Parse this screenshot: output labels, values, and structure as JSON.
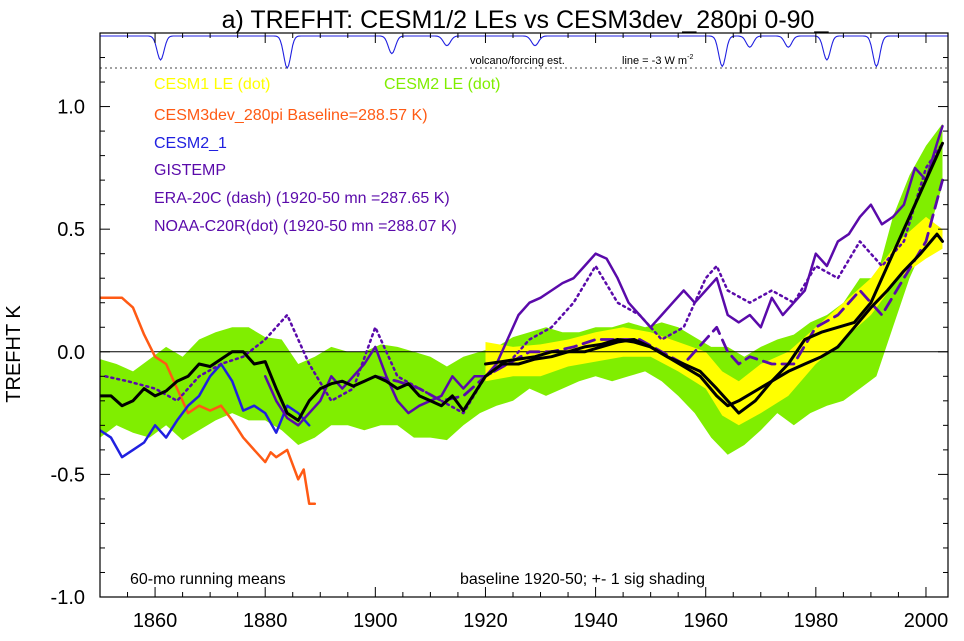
{
  "chart_data": {
    "type": "line",
    "title": "a) TREFHT: CESM1/2 LEs vs CESM3dev_280pi 0-90_",
    "xlabel": "",
    "ylabel": "TREFHT K",
    "xlim": [
      1850,
      2004
    ],
    "ylim": [
      -1.0,
      1.3
    ],
    "x_ticks": [
      1860,
      1880,
      1900,
      1920,
      1940,
      1960,
      1980,
      2000
    ],
    "y_ticks": [
      {
        "value": 1.0,
        "label": "1.0"
      },
      {
        "value": 0.5,
        "label": "0.5"
      },
      {
        "value": 0.0,
        "label": "0.0"
      },
      {
        "value": -0.5,
        "label": "-0.5"
      },
      {
        "value": -1.0,
        "label": "-1.0"
      }
    ],
    "grid": false,
    "zero_line": true,
    "legend_placement": "top-left",
    "legend": [
      {
        "label": "CESM1 LE (dot)",
        "color": "#ffff00"
      },
      {
        "label": "CESM2 LE (dot)",
        "color": "#80ee00"
      },
      {
        "label": "CESM3dev_280pi Baseline=288.57 K)",
        "color": "#ff5a14"
      },
      {
        "label": "CESM2_1",
        "color": "#2020e0"
      },
      {
        "label": "GISTEMP",
        "color": "#5a0aaa"
      },
      {
        "label": "ERA-20C (dash) (1920-50 mn =287.65 K)",
        "color": "#5a0aaa"
      },
      {
        "label": "NOAA-C20R(dot) (1920-50 mn =288.07 K)",
        "color": "#5a0aaa"
      }
    ],
    "annotations": {
      "volcano": "volcano/forcing est.",
      "line_scale": "line = -3 W m",
      "running_mean": "60-mo running means",
      "baseline": "baseline 1920-50; +- 1 sig shading"
    },
    "volcano_dips": [
      {
        "year": 1861,
        "depth": 0.75
      },
      {
        "year": 1884,
        "depth": 1.0
      },
      {
        "year": 1903,
        "depth": 0.55
      },
      {
        "year": 1913,
        "depth": 0.3
      },
      {
        "year": 1929,
        "depth": 0.3
      },
      {
        "year": 1963,
        "depth": 0.95
      },
      {
        "year": 1968,
        "depth": 0.35
      },
      {
        "year": 1975,
        "depth": 0.35
      },
      {
        "year": 1982,
        "depth": 0.75
      },
      {
        "year": 1991,
        "depth": 0.95
      }
    ],
    "series": [
      {
        "name": "CESM2 LE (dot)",
        "kind": "band",
        "color": "#80ee00",
        "x": [
          1850,
          1853,
          1856,
          1859,
          1862,
          1865,
          1868,
          1871,
          1874,
          1877,
          1880,
          1883,
          1886,
          1889,
          1892,
          1895,
          1898,
          1901,
          1904,
          1907,
          1910,
          1913,
          1916,
          1919,
          1922,
          1925,
          1928,
          1931,
          1934,
          1937,
          1940,
          1943,
          1946,
          1949,
          1952,
          1955,
          1958,
          1961,
          1964,
          1967,
          1970,
          1973,
          1976,
          1979,
          1982,
          1985,
          1988,
          1991,
          1994,
          1997,
          2000,
          2003
        ],
        "upper": [
          -0.03,
          -0.05,
          -0.08,
          -0.03,
          0.02,
          -0.02,
          0.05,
          0.08,
          0.1,
          0.1,
          0.06,
          0.05,
          -0.05,
          -0.02,
          0.02,
          0.0,
          0.0,
          0.03,
          0.02,
          0.0,
          -0.02,
          -0.06,
          -0.02,
          0.0,
          0.02,
          0.06,
          0.08,
          0.1,
          0.08,
          0.08,
          0.1,
          0.1,
          0.12,
          0.1,
          0.12,
          0.1,
          0.06,
          0.02,
          0.02,
          -0.02,
          0.02,
          0.05,
          0.07,
          0.12,
          0.15,
          0.2,
          0.3,
          0.3,
          0.55,
          0.72,
          0.84,
          0.93
        ],
        "lower": [
          -0.35,
          -0.3,
          -0.33,
          -0.35,
          -0.3,
          -0.36,
          -0.32,
          -0.28,
          -0.25,
          -0.28,
          -0.28,
          -0.32,
          -0.38,
          -0.35,
          -0.3,
          -0.3,
          -0.32,
          -0.3,
          -0.3,
          -0.35,
          -0.35,
          -0.36,
          -0.3,
          -0.25,
          -0.22,
          -0.2,
          -0.15,
          -0.18,
          -0.15,
          -0.12,
          -0.1,
          -0.12,
          -0.1,
          -0.08,
          -0.12,
          -0.18,
          -0.25,
          -0.35,
          -0.42,
          -0.38,
          -0.32,
          -0.25,
          -0.3,
          -0.25,
          -0.22,
          -0.2,
          -0.15,
          -0.1,
          0.1,
          0.3,
          0.45,
          0.68
        ]
      },
      {
        "name": "CESM1 LE (dot)",
        "kind": "band",
        "color": "#ffff00",
        "x": [
          1920,
          1925,
          1930,
          1935,
          1940,
          1945,
          1950,
          1955,
          1960,
          1963,
          1966,
          1970,
          1975,
          1980,
          1985,
          1990,
          1995,
          2000,
          2003
        ],
        "upper": [
          0.04,
          0.02,
          0.03,
          0.05,
          0.08,
          0.1,
          0.08,
          0.04,
          0.0,
          -0.08,
          -0.12,
          -0.05,
          0.0,
          0.1,
          0.2,
          0.3,
          0.45,
          0.55,
          0.5
        ],
        "lower": [
          -0.12,
          -0.1,
          -0.1,
          -0.06,
          -0.04,
          -0.02,
          -0.02,
          -0.08,
          -0.15,
          -0.26,
          -0.3,
          -0.25,
          -0.18,
          -0.05,
          0.05,
          0.15,
          0.3,
          0.38,
          0.42
        ]
      },
      {
        "name": "CESM3dev_280pi Baseline=288.57 K)",
        "kind": "line",
        "color": "#ff5a14",
        "width": 2.5,
        "x": [
          1850,
          1852,
          1854,
          1856,
          1858,
          1860,
          1862,
          1864,
          1866,
          1868,
          1870,
          1872,
          1874,
          1876,
          1878,
          1880,
          1881,
          1882,
          1884,
          1886,
          1887,
          1888,
          1889
        ],
        "y": [
          0.22,
          0.22,
          0.22,
          0.18,
          0.07,
          -0.02,
          -0.05,
          -0.15,
          -0.25,
          -0.22,
          -0.24,
          -0.22,
          -0.28,
          -0.35,
          -0.4,
          -0.45,
          -0.41,
          -0.43,
          -0.4,
          -0.52,
          -0.48,
          -0.62,
          -0.62
        ]
      },
      {
        "name": "CESM2_1",
        "kind": "line",
        "color": "#2020e0",
        "width": 2.5,
        "x": [
          1850,
          1852,
          1854,
          1856,
          1858,
          1860,
          1862,
          1864,
          1866,
          1868,
          1870,
          1872,
          1874,
          1876,
          1878,
          1880,
          1882,
          1884,
          1886,
          1888
        ],
        "y": [
          -0.32,
          -0.35,
          -0.43,
          -0.4,
          -0.37,
          -0.3,
          -0.35,
          -0.28,
          -0.22,
          -0.18,
          -0.1,
          -0.05,
          -0.12,
          -0.24,
          -0.22,
          -0.25,
          -0.33,
          -0.22,
          -0.25,
          -0.3
        ]
      },
      {
        "name": "NOAA-C20R(dot) (1920-50 mn =288.07 K)",
        "kind": "line",
        "color": "#5a0aaa",
        "width": 2.5,
        "dash": "2,4",
        "x": [
          1851,
          1855,
          1860,
          1864,
          1868,
          1872,
          1876,
          1880,
          1884,
          1888,
          1892,
          1896,
          1900,
          1904,
          1908,
          1912,
          1916,
          1920,
          1924,
          1928,
          1932,
          1936,
          1940,
          1944,
          1948,
          1952,
          1956,
          1960,
          1962,
          1964,
          1968,
          1972,
          1976,
          1980,
          1984,
          1988,
          1992,
          1996,
          2000,
          2003
        ],
        "y": [
          -0.1,
          -0.12,
          -0.15,
          -0.2,
          -0.1,
          -0.05,
          -0.02,
          0.05,
          0.15,
          -0.05,
          -0.2,
          -0.15,
          0.1,
          -0.1,
          -0.15,
          -0.2,
          -0.25,
          -0.1,
          -0.05,
          0.05,
          0.1,
          0.2,
          0.35,
          0.2,
          0.15,
          0.05,
          0.1,
          0.3,
          0.35,
          0.25,
          0.2,
          0.25,
          0.2,
          0.35,
          0.3,
          0.45,
          0.35,
          0.45,
          0.75,
          0.85
        ]
      },
      {
        "name": "ERA-20C (dash) (1920-50 mn =287.65 K)",
        "kind": "line",
        "color": "#5a0aaa",
        "width": 2.8,
        "dash": "12,7",
        "x": [
          1900,
          1904,
          1908,
          1912,
          1916,
          1920,
          1924,
          1928,
          1932,
          1936,
          1940,
          1944,
          1948,
          1952,
          1956,
          1960,
          1962,
          1964,
          1966,
          1968,
          1972,
          1976,
          1980,
          1984,
          1988,
          1992,
          1996,
          2000,
          2003
        ],
        "y": [
          -0.1,
          -0.12,
          -0.15,
          -0.2,
          -0.18,
          -0.1,
          -0.05,
          0.0,
          0.0,
          0.02,
          0.05,
          0.05,
          0.05,
          0.0,
          -0.05,
          0.05,
          0.1,
          0.0,
          -0.05,
          -0.02,
          -0.05,
          -0.05,
          0.1,
          0.15,
          0.25,
          0.15,
          0.3,
          0.45,
          0.7
        ]
      },
      {
        "name": "GISTEMP",
        "kind": "line",
        "color": "#5a0aaa",
        "width": 2.5,
        "x": [
          1880,
          1882,
          1884,
          1886,
          1888,
          1890,
          1892,
          1894,
          1896,
          1898,
          1900,
          1902,
          1904,
          1906,
          1908,
          1910,
          1912,
          1914,
          1916,
          1918,
          1920,
          1922,
          1924,
          1926,
          1928,
          1930,
          1932,
          1934,
          1936,
          1938,
          1940,
          1942,
          1944,
          1946,
          1948,
          1950,
          1952,
          1954,
          1956,
          1958,
          1960,
          1962,
          1964,
          1966,
          1968,
          1970,
          1972,
          1974,
          1976,
          1978,
          1980,
          1982,
          1984,
          1986,
          1988,
          1990,
          1992,
          1994,
          1996,
          1998,
          2000,
          2002,
          2003
        ],
        "y": [
          -0.1,
          -0.2,
          -0.27,
          -0.3,
          -0.25,
          -0.2,
          -0.1,
          -0.15,
          -0.1,
          -0.05,
          0.02,
          -0.1,
          -0.2,
          -0.25,
          -0.22,
          -0.2,
          -0.18,
          -0.1,
          -0.15,
          -0.1,
          -0.1,
          -0.05,
          0.05,
          0.15,
          0.2,
          0.22,
          0.25,
          0.28,
          0.3,
          0.35,
          0.4,
          0.38,
          0.3,
          0.2,
          0.15,
          0.1,
          0.15,
          0.2,
          0.25,
          0.2,
          0.25,
          0.3,
          0.15,
          0.12,
          0.15,
          0.1,
          0.22,
          0.15,
          0.2,
          0.25,
          0.4,
          0.35,
          0.45,
          0.48,
          0.55,
          0.6,
          0.52,
          0.55,
          0.6,
          0.75,
          0.7,
          0.85,
          0.92
        ]
      },
      {
        "name": "CESM1 LE mean",
        "kind": "line",
        "color": "#000000",
        "width": 3,
        "x": [
          1920,
          1923,
          1926,
          1929,
          1932,
          1935,
          1938,
          1941,
          1944,
          1947,
          1950,
          1953,
          1956,
          1959,
          1962,
          1964,
          1966,
          1969,
          1972,
          1975,
          1978,
          1981,
          1984,
          1987,
          1990,
          1993,
          1996,
          1999,
          2002,
          2003
        ],
        "y": [
          -0.05,
          -0.04,
          -0.03,
          -0.02,
          0.0,
          0.0,
          0.02,
          0.03,
          0.05,
          0.04,
          0.02,
          -0.02,
          -0.06,
          -0.1,
          -0.18,
          -0.22,
          -0.2,
          -0.16,
          -0.12,
          -0.08,
          -0.05,
          -0.02,
          0.02,
          0.1,
          0.18,
          0.25,
          0.33,
          0.4,
          0.48,
          0.45
        ]
      },
      {
        "name": "CESM2 LE mean",
        "kind": "line",
        "color": "#000000",
        "width": 3,
        "x": [
          1850,
          1852,
          1854,
          1856,
          1858,
          1860,
          1862,
          1864,
          1866,
          1868,
          1870,
          1872,
          1874,
          1876,
          1878,
          1880,
          1882,
          1884,
          1886,
          1888,
          1890,
          1892,
          1894,
          1896,
          1898,
          1900,
          1902,
          1904,
          1906,
          1908,
          1910,
          1912,
          1914,
          1916,
          1918,
          1920,
          1923,
          1926,
          1929,
          1932,
          1935,
          1938,
          1941,
          1944,
          1947,
          1950,
          1953,
          1956,
          1959,
          1962,
          1964,
          1966,
          1969,
          1972,
          1975,
          1978,
          1981,
          1984,
          1987,
          1990,
          1993,
          1996,
          1999,
          2002,
          2003
        ],
        "y": [
          -0.18,
          -0.18,
          -0.22,
          -0.2,
          -0.15,
          -0.18,
          -0.16,
          -0.12,
          -0.1,
          -0.05,
          -0.06,
          -0.03,
          0.0,
          0.0,
          -0.05,
          -0.04,
          -0.15,
          -0.25,
          -0.28,
          -0.2,
          -0.15,
          -0.13,
          -0.12,
          -0.14,
          -0.12,
          -0.1,
          -0.12,
          -0.15,
          -0.13,
          -0.18,
          -0.2,
          -0.22,
          -0.18,
          -0.24,
          -0.17,
          -0.1,
          -0.05,
          -0.05,
          -0.03,
          -0.02,
          0.0,
          0.0,
          0.02,
          0.04,
          0.05,
          0.02,
          -0.02,
          -0.05,
          -0.08,
          -0.15,
          -0.2,
          -0.25,
          -0.2,
          -0.12,
          -0.05,
          0.05,
          0.08,
          0.1,
          0.12,
          0.2,
          0.35,
          0.5,
          0.65,
          0.8,
          0.85
        ]
      }
    ]
  }
}
